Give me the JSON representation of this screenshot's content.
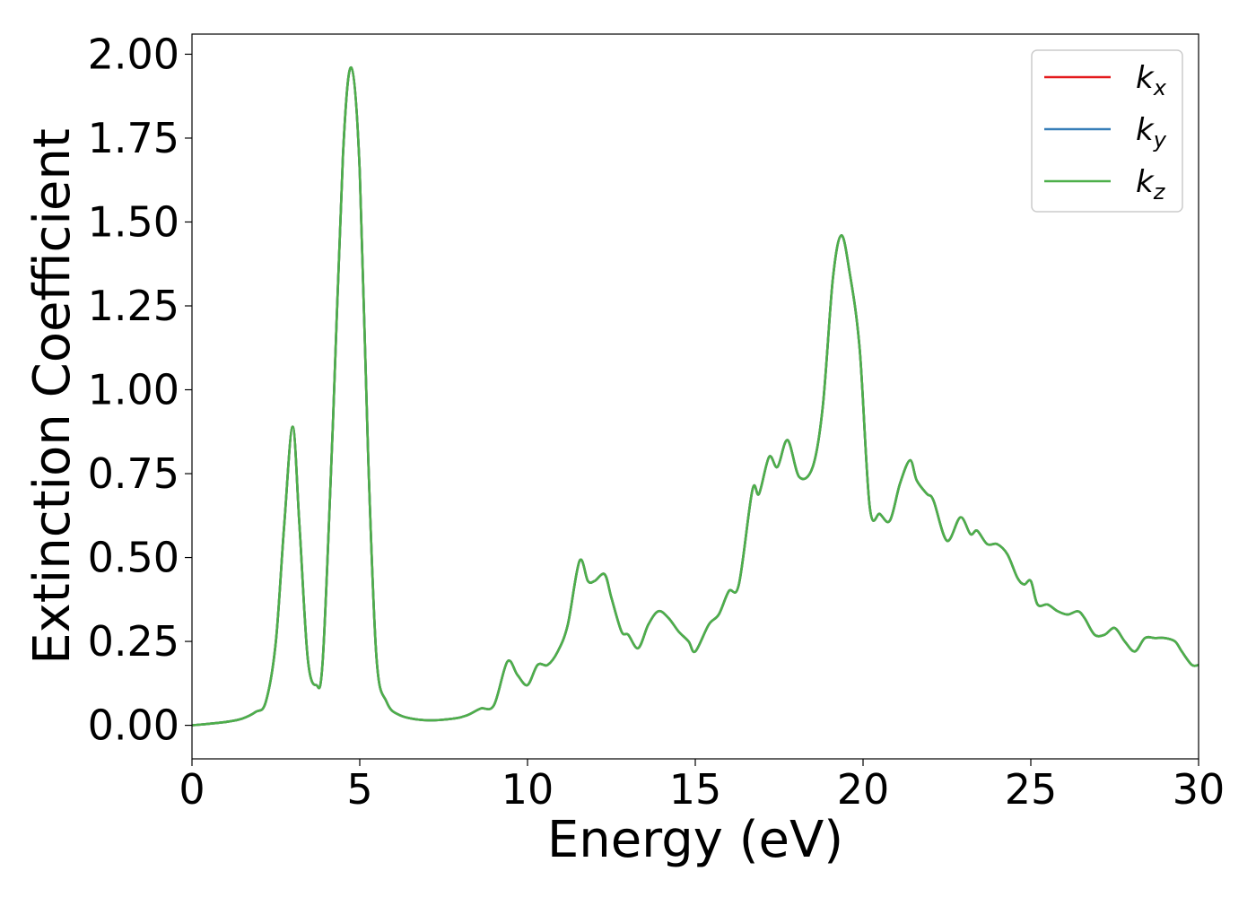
{
  "chart_data": {
    "type": "line",
    "title": "",
    "xlabel": "Energy (eV)",
    "ylabel": "Extinction Coefficient",
    "xlim": [
      0,
      30
    ],
    "ylim": [
      -0.1,
      2.06
    ],
    "x_ticks": [
      0,
      5,
      10,
      15,
      20,
      25,
      30
    ],
    "x_tick_labels": [
      "0",
      "5",
      "10",
      "15",
      "20",
      "25",
      "30"
    ],
    "y_ticks": [
      0.0,
      0.25,
      0.5,
      0.75,
      1.0,
      1.25,
      1.5,
      1.75,
      2.0
    ],
    "y_tick_labels": [
      "0.00",
      "0.25",
      "0.50",
      "0.75",
      "1.00",
      "1.25",
      "1.50",
      "1.75",
      "2.00"
    ],
    "grid": false,
    "legend_position": "top-right",
    "series": [
      {
        "name": "k",
        "subscript": "x",
        "color": "#e41a1c",
        "x": [
          0,
          1.0,
          1.5,
          1.9,
          2.2,
          2.5,
          2.75,
          3.0,
          3.2,
          3.45,
          3.7,
          3.9,
          4.2,
          4.5,
          4.75,
          5.0,
          5.25,
          5.5,
          5.8,
          6.2,
          7.0,
          7.8,
          8.2,
          8.6,
          9.0,
          9.4,
          9.7,
          10.0,
          10.3,
          10.6,
          10.9,
          11.2,
          11.55,
          11.8,
          12.0,
          12.3,
          12.5,
          12.8,
          13.0,
          13.3,
          13.6,
          13.9,
          14.2,
          14.5,
          14.8,
          15.0,
          15.4,
          15.7,
          16.0,
          16.3,
          16.7,
          16.9,
          17.2,
          17.45,
          17.75,
          18.1,
          18.5,
          18.8,
          19.1,
          19.35,
          19.6,
          19.9,
          20.2,
          20.5,
          20.8,
          21.1,
          21.4,
          21.6,
          21.9,
          22.1,
          22.5,
          22.9,
          23.2,
          23.4,
          23.7,
          24.0,
          24.3,
          24.6,
          24.8,
          25.0,
          25.2,
          25.5,
          25.8,
          26.1,
          26.4,
          26.6,
          26.9,
          27.2,
          27.5,
          27.8,
          28.1,
          28.4,
          28.7,
          29.0,
          29.3,
          29.5,
          29.8,
          30.0
        ],
        "y": [
          0.0,
          0.01,
          0.02,
          0.04,
          0.07,
          0.25,
          0.6,
          0.89,
          0.6,
          0.2,
          0.12,
          0.2,
          0.9,
          1.7,
          1.96,
          1.65,
          0.8,
          0.2,
          0.07,
          0.03,
          0.015,
          0.02,
          0.03,
          0.05,
          0.06,
          0.19,
          0.15,
          0.12,
          0.18,
          0.18,
          0.22,
          0.3,
          0.49,
          0.43,
          0.43,
          0.45,
          0.38,
          0.28,
          0.27,
          0.23,
          0.3,
          0.34,
          0.32,
          0.28,
          0.25,
          0.22,
          0.3,
          0.33,
          0.4,
          0.42,
          0.7,
          0.69,
          0.8,
          0.77,
          0.85,
          0.74,
          0.77,
          0.95,
          1.33,
          1.46,
          1.35,
          1.12,
          0.65,
          0.63,
          0.61,
          0.72,
          0.79,
          0.73,
          0.69,
          0.67,
          0.55,
          0.62,
          0.57,
          0.58,
          0.54,
          0.54,
          0.51,
          0.44,
          0.42,
          0.43,
          0.36,
          0.36,
          0.34,
          0.33,
          0.34,
          0.32,
          0.27,
          0.27,
          0.29,
          0.25,
          0.22,
          0.26,
          0.26,
          0.26,
          0.25,
          0.22,
          0.18,
          0.18
        ]
      },
      {
        "name": "k",
        "subscript": "y",
        "color": "#377eb8",
        "x": [
          0,
          1.0,
          1.5,
          1.9,
          2.2,
          2.5,
          2.75,
          3.0,
          3.2,
          3.45,
          3.7,
          3.9,
          4.2,
          4.5,
          4.75,
          5.0,
          5.25,
          5.5,
          5.8,
          6.2,
          7.0,
          7.8,
          8.2,
          8.6,
          9.0,
          9.4,
          9.7,
          10.0,
          10.3,
          10.6,
          10.9,
          11.2,
          11.55,
          11.8,
          12.0,
          12.3,
          12.5,
          12.8,
          13.0,
          13.3,
          13.6,
          13.9,
          14.2,
          14.5,
          14.8,
          15.0,
          15.4,
          15.7,
          16.0,
          16.3,
          16.7,
          16.9,
          17.2,
          17.45,
          17.75,
          18.1,
          18.5,
          18.8,
          19.1,
          19.35,
          19.6,
          19.9,
          20.2,
          20.5,
          20.8,
          21.1,
          21.4,
          21.6,
          21.9,
          22.1,
          22.5,
          22.9,
          23.2,
          23.4,
          23.7,
          24.0,
          24.3,
          24.6,
          24.8,
          25.0,
          25.2,
          25.5,
          25.8,
          26.1,
          26.4,
          26.6,
          26.9,
          27.2,
          27.5,
          27.8,
          28.1,
          28.4,
          28.7,
          29.0,
          29.3,
          29.5,
          29.8,
          30.0
        ],
        "y": [
          0.0,
          0.01,
          0.02,
          0.04,
          0.07,
          0.25,
          0.6,
          0.89,
          0.6,
          0.2,
          0.12,
          0.2,
          0.9,
          1.7,
          1.96,
          1.65,
          0.8,
          0.2,
          0.07,
          0.03,
          0.015,
          0.02,
          0.03,
          0.05,
          0.06,
          0.19,
          0.15,
          0.12,
          0.18,
          0.18,
          0.22,
          0.3,
          0.49,
          0.43,
          0.43,
          0.45,
          0.38,
          0.28,
          0.27,
          0.23,
          0.3,
          0.34,
          0.32,
          0.28,
          0.25,
          0.22,
          0.3,
          0.33,
          0.4,
          0.42,
          0.7,
          0.69,
          0.8,
          0.77,
          0.85,
          0.74,
          0.77,
          0.95,
          1.33,
          1.46,
          1.35,
          1.12,
          0.65,
          0.63,
          0.61,
          0.72,
          0.79,
          0.73,
          0.69,
          0.67,
          0.55,
          0.62,
          0.57,
          0.58,
          0.54,
          0.54,
          0.51,
          0.44,
          0.42,
          0.43,
          0.36,
          0.36,
          0.34,
          0.33,
          0.34,
          0.32,
          0.27,
          0.27,
          0.29,
          0.25,
          0.22,
          0.26,
          0.26,
          0.26,
          0.25,
          0.22,
          0.18,
          0.18
        ]
      },
      {
        "name": "k",
        "subscript": "z",
        "color": "#4daf4a",
        "x": [
          0,
          1.0,
          1.5,
          1.9,
          2.2,
          2.5,
          2.75,
          3.0,
          3.2,
          3.45,
          3.7,
          3.9,
          4.2,
          4.5,
          4.75,
          5.0,
          5.25,
          5.5,
          5.8,
          6.2,
          7.0,
          7.8,
          8.2,
          8.6,
          9.0,
          9.4,
          9.7,
          10.0,
          10.3,
          10.6,
          10.9,
          11.2,
          11.55,
          11.8,
          12.0,
          12.3,
          12.5,
          12.8,
          13.0,
          13.3,
          13.6,
          13.9,
          14.2,
          14.5,
          14.8,
          15.0,
          15.4,
          15.7,
          16.0,
          16.3,
          16.7,
          16.9,
          17.2,
          17.45,
          17.75,
          18.1,
          18.5,
          18.8,
          19.1,
          19.35,
          19.6,
          19.9,
          20.2,
          20.5,
          20.8,
          21.1,
          21.4,
          21.6,
          21.9,
          22.1,
          22.5,
          22.9,
          23.2,
          23.4,
          23.7,
          24.0,
          24.3,
          24.6,
          24.8,
          25.0,
          25.2,
          25.5,
          25.8,
          26.1,
          26.4,
          26.6,
          26.9,
          27.2,
          27.5,
          27.8,
          28.1,
          28.4,
          28.7,
          29.0,
          29.3,
          29.5,
          29.8,
          30.0
        ],
        "y": [
          0.0,
          0.01,
          0.02,
          0.04,
          0.07,
          0.25,
          0.6,
          0.89,
          0.6,
          0.2,
          0.12,
          0.2,
          0.9,
          1.7,
          1.96,
          1.65,
          0.8,
          0.2,
          0.07,
          0.03,
          0.015,
          0.02,
          0.03,
          0.05,
          0.06,
          0.19,
          0.15,
          0.12,
          0.18,
          0.18,
          0.22,
          0.3,
          0.49,
          0.43,
          0.43,
          0.45,
          0.38,
          0.28,
          0.27,
          0.23,
          0.3,
          0.34,
          0.32,
          0.28,
          0.25,
          0.22,
          0.3,
          0.33,
          0.4,
          0.42,
          0.7,
          0.69,
          0.8,
          0.77,
          0.85,
          0.74,
          0.77,
          0.95,
          1.33,
          1.46,
          1.35,
          1.12,
          0.65,
          0.63,
          0.61,
          0.72,
          0.79,
          0.73,
          0.69,
          0.67,
          0.55,
          0.62,
          0.57,
          0.58,
          0.54,
          0.54,
          0.51,
          0.44,
          0.42,
          0.43,
          0.36,
          0.36,
          0.34,
          0.33,
          0.34,
          0.32,
          0.27,
          0.27,
          0.29,
          0.25,
          0.22,
          0.26,
          0.26,
          0.26,
          0.25,
          0.22,
          0.18,
          0.18
        ]
      }
    ]
  }
}
